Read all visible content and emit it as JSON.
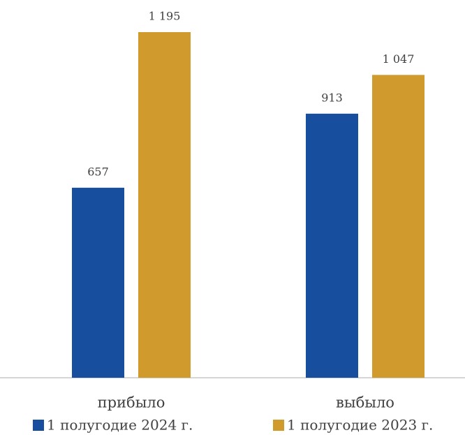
{
  "chart_data": {
    "type": "bar",
    "categories": [
      "прибыло",
      "выбыло"
    ],
    "series": [
      {
        "name": "1 полугодие 2024 г.",
        "color": "#174f9e",
        "values": [
          657,
          913
        ],
        "value_labels": [
          "657",
          "913"
        ]
      },
      {
        "name": "1 полугодие 2023 г.",
        "color": "#d09a2d",
        "values": [
          1195,
          1047
        ],
        "value_labels": [
          "1 195",
          "1 047"
        ]
      }
    ]
  }
}
